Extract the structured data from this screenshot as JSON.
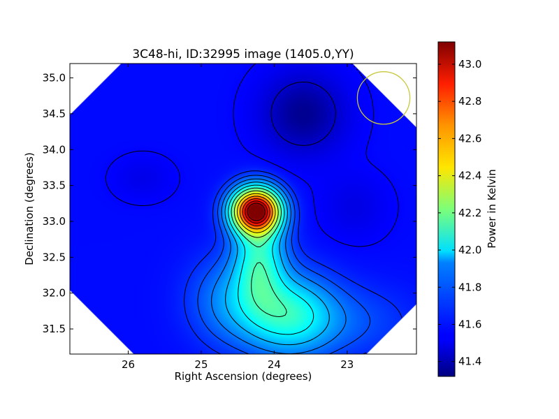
{
  "chart_data": {
    "type": "heatmap",
    "title": "3C48-hi, ID:32995 image (1405.0,YY)",
    "xlabel": "Right Ascension (degrees)",
    "ylabel": "Declination (degrees)",
    "xlim": [
      26.8,
      22.05
    ],
    "ylim": [
      31.15,
      35.2
    ],
    "x_reversed": true,
    "x_ticks": [
      26,
      25,
      24,
      23
    ],
    "y_ticks": [
      31.5,
      32.0,
      32.5,
      33.0,
      33.5,
      34.0,
      34.5,
      35.0
    ],
    "x_tick_labels": [
      "26",
      "25",
      "24",
      "23"
    ],
    "y_tick_labels": [
      "31.5",
      "32.0",
      "32.5",
      "33.0",
      "33.5",
      "34.0",
      "34.5",
      "35.0"
    ],
    "colormap": "jet",
    "colorbar": {
      "label": "Power in Kelvin",
      "range": [
        41.32,
        43.12
      ],
      "ticks": [
        41.4,
        41.6,
        41.8,
        42.0,
        42.2,
        42.4,
        42.6,
        42.8,
        43.0
      ],
      "tick_labels": [
        "41.4",
        "41.6",
        "41.8",
        "42.0",
        "42.2",
        "42.4",
        "42.6",
        "42.8",
        "43.0"
      ]
    },
    "sources": [
      {
        "ra": 24.25,
        "dec": 33.15,
        "peak": 43.1,
        "kind": "bright source"
      },
      {
        "ra": 23.8,
        "dec": 31.7,
        "peak": 42.2,
        "kind": "secondary source"
      },
      {
        "ra": 23.6,
        "dec": 34.5,
        "peak": 41.35,
        "kind": "minimum"
      }
    ],
    "beam_circle": {
      "ra": 22.5,
      "dec": 34.72,
      "radius_deg": 0.36,
      "color": "#c8c83c"
    },
    "contour_color": "#000000",
    "grid": false
  }
}
